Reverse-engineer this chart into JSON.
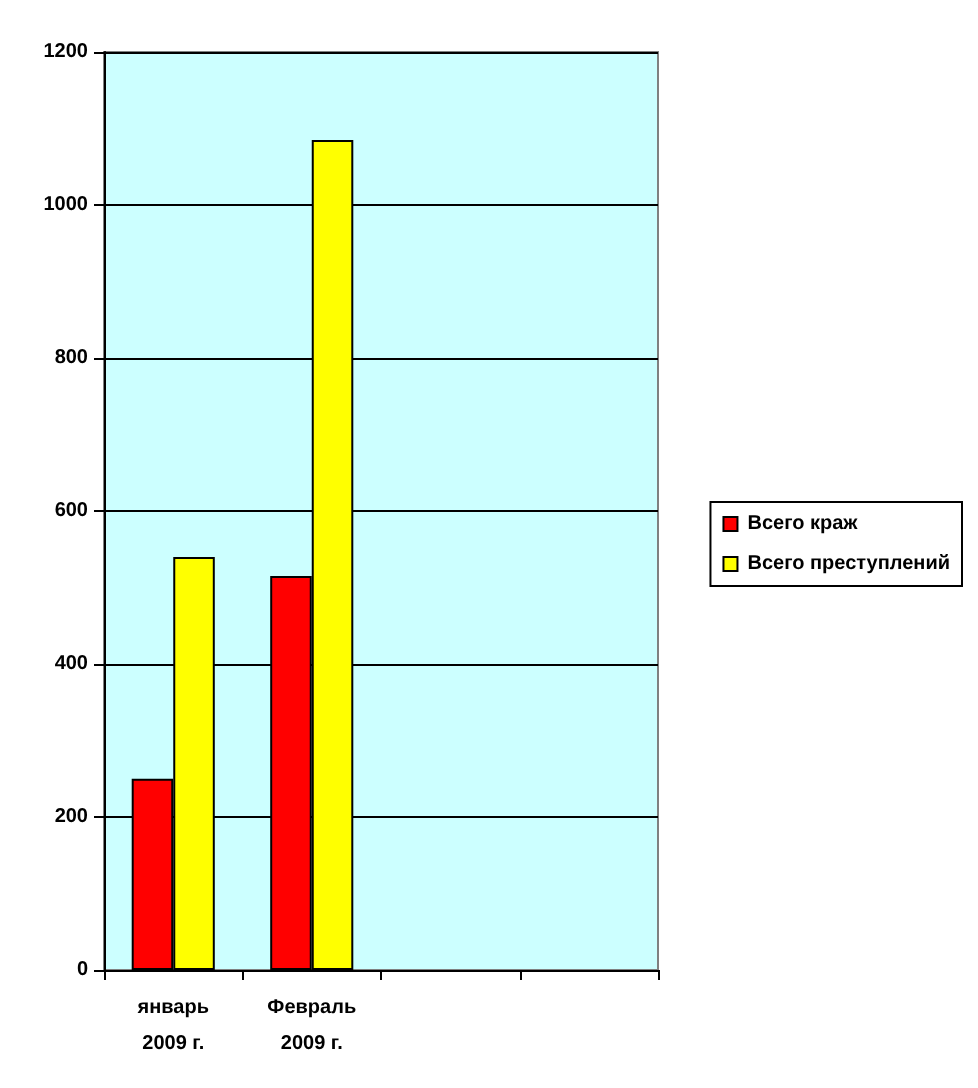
{
  "chart_data": {
    "type": "bar",
    "categories": [
      "январь 2009 г.",
      "Февраль 2009 г.",
      null,
      null
    ],
    "series": [
      {
        "name": "Всего краж",
        "color": "#ff0000",
        "values": [
          250,
          515,
          null,
          null
        ]
      },
      {
        "name": "Всего преступлений",
        "color": "#ffff00",
        "values": [
          540,
          1085,
          null,
          null
        ]
      }
    ],
    "ylim": [
      0,
      1200
    ],
    "yticks": [
      0,
      200,
      400,
      600,
      800,
      1000,
      1200
    ],
    "grid": "y",
    "legend": "right"
  }
}
